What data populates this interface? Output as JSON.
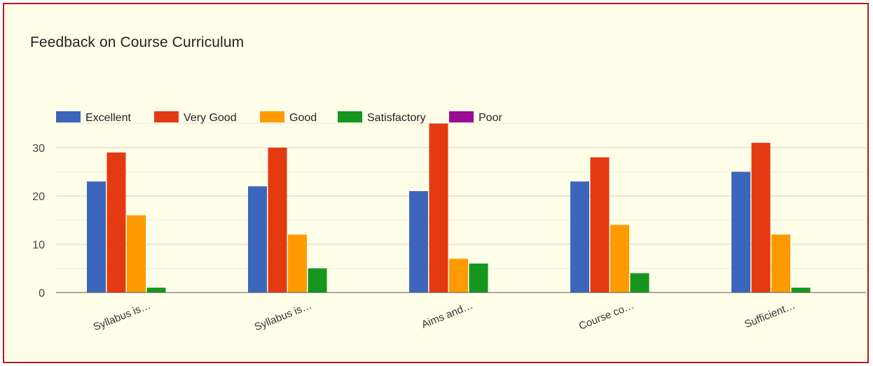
{
  "chart_data": {
    "type": "bar",
    "title": "Feedback on Course Curriculum",
    "categories": [
      "Syllabus is…",
      "Syllabus is…",
      "Aims and…",
      "Course co…",
      "Sufficient…"
    ],
    "series": [
      {
        "name": "Excellent",
        "color": "#3b66bc",
        "values": [
          23,
          22,
          21,
          23,
          25
        ]
      },
      {
        "name": "Very Good",
        "color": "#e43a12",
        "values": [
          29,
          30,
          35,
          28,
          31
        ]
      },
      {
        "name": "Good",
        "color": "#ff9a00",
        "values": [
          16,
          12,
          7,
          14,
          12
        ]
      },
      {
        "name": "Satisfactory",
        "color": "#14961f",
        "values": [
          1,
          5,
          6,
          4,
          1
        ]
      },
      {
        "name": "Poor",
        "color": "#9c0b95",
        "values": [
          0,
          0,
          0,
          0,
          0
        ]
      }
    ],
    "y_ticks": [
      0,
      10,
      20,
      30
    ],
    "ylim": [
      0,
      35
    ],
    "grid": true,
    "legend_position": "top-left"
  }
}
